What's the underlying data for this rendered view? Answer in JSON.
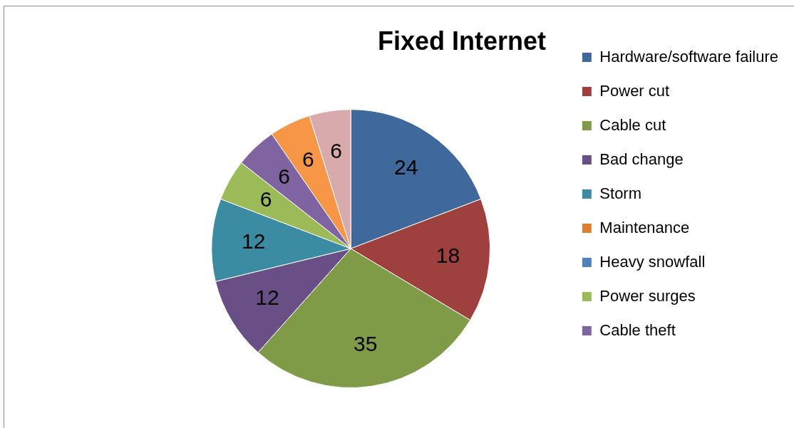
{
  "chart_data": {
    "type": "pie",
    "title": "Fixed Internet",
    "categories": [
      "Hardware/software failure",
      "Power cut",
      "Cable cut",
      "Bad change",
      "Storm",
      "Maintenance",
      "Heavy snowfall",
      "Power surges",
      "Cable theft",
      null,
      null
    ],
    "values": [
      24,
      18,
      35,
      12,
      12,
      0,
      0,
      6,
      6,
      6,
      6
    ],
    "colors": [
      "#3f689b",
      "#9e403e",
      "#7f9b48",
      "#6a4f87",
      "#3b8ba3",
      "#db7f35",
      "#4f81bd",
      "#9bbb59",
      "#8064a2",
      "#f79646",
      "#d9aaab"
    ],
    "data_labels": true,
    "legend": "right"
  }
}
